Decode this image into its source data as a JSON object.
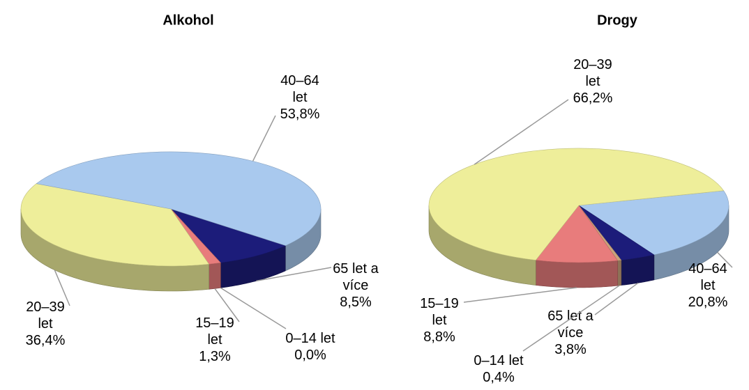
{
  "chart_data": [
    {
      "type": "pie",
      "title": "Alkohol",
      "categories": [
        "65 let a více",
        "0–14 let",
        "15–19 let",
        "20–39 let",
        "40–64 let"
      ],
      "values": [
        8.5,
        0.0,
        1.3,
        36.4,
        53.8
      ],
      "value_labels": [
        "8,5%",
        "0,0%",
        "1,3%",
        "36,4%",
        "53,8%"
      ],
      "colors": [
        "#1c1c7a",
        "#c9a27c",
        "#e87c7c",
        "#eeee9a",
        "#a9c9ee"
      ]
    },
    {
      "type": "pie",
      "title": "Drogy",
      "categories": [
        "40–64 let",
        "65 let a více",
        "0–14 let",
        "15–19 let",
        "20–39 let"
      ],
      "values": [
        20.8,
        3.8,
        0.4,
        8.8,
        66.2
      ],
      "value_labels": [
        "20,8%",
        "3,8%",
        "0,4%",
        "8,8%",
        "66,2%"
      ],
      "colors": [
        "#a9c9ee",
        "#1c1c7a",
        "#c9a27c",
        "#e87c7c",
        "#eeee9a"
      ]
    }
  ]
}
